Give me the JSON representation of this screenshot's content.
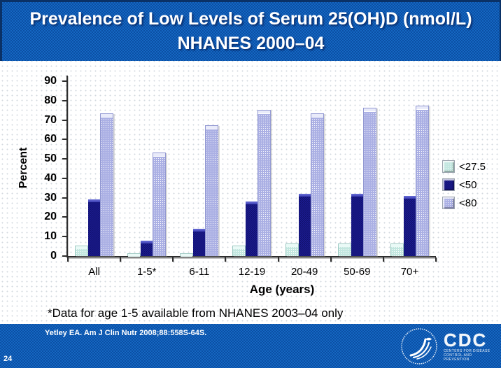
{
  "slide": {
    "title_line1": "Prevalence of Low Levels of Serum 25(OH)D (nmol/L)",
    "title_line2": "NHANES 2000–04",
    "footnote": "*Data for age 1-5 available from NHANES 2003–04 only",
    "citation": "Yetley EA. Am J Clin Nutr 2008;88:558S-64S.",
    "page_number": "24",
    "colors": {
      "band_blue": "#1567c2",
      "band_dot": "#0b4fa4",
      "title_text": "#ffffff"
    }
  },
  "logos": {
    "cdc_text": "CDC",
    "cdc_caption": "Centers for Disease Control and Prevention"
  },
  "chart_data": {
    "type": "bar",
    "title": "Prevalence of Low Levels of Serum 25(OH)D (nmol/L) NHANES 2000–04",
    "categories": [
      "All",
      "1-5*",
      "6-11",
      "12-19",
      "20-49",
      "50-69",
      "70+"
    ],
    "series": [
      {
        "name": "<27.5",
        "color": "#c3e7e0",
        "values": [
          5,
          1,
          1,
          5,
          6,
          6,
          6
        ]
      },
      {
        "name": "<50",
        "color": "#1d1d94",
        "values": [
          29,
          8,
          14,
          28,
          32,
          32,
          31
        ]
      },
      {
        "name": "<80",
        "color": "#abb0e4",
        "values": [
          73,
          53,
          67,
          75,
          73,
          76,
          77
        ]
      }
    ],
    "xlabel": "Age (years)",
    "ylabel": "Percent",
    "ylim": [
      0,
      90
    ],
    "yticks": [
      0,
      10,
      20,
      30,
      40,
      50,
      60,
      70,
      80,
      90
    ],
    "grid": false,
    "legend_position": "right"
  }
}
